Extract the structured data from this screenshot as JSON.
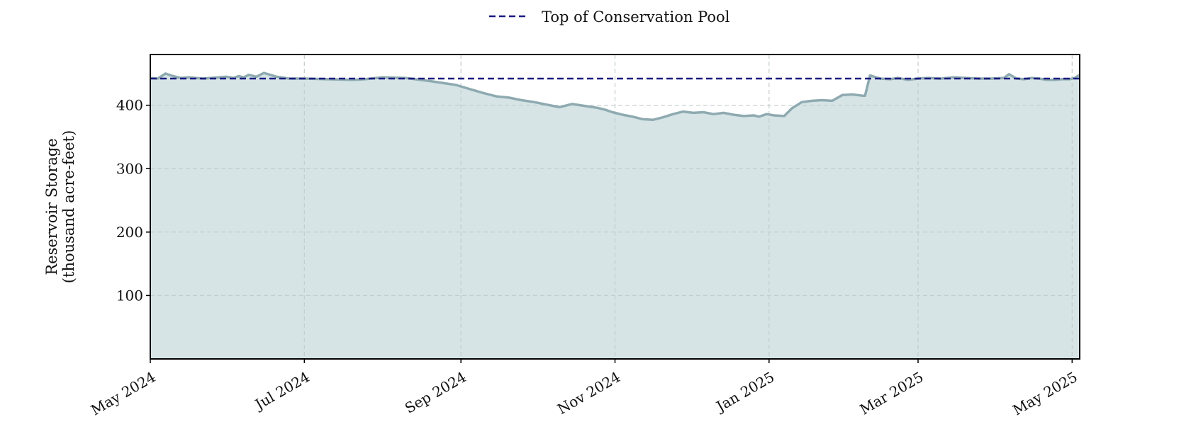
{
  "chart_data": {
    "type": "area",
    "xlabel": "",
    "ylabel": "Reservoir Storage\n(thousand acre-feet)",
    "ylim": [
      0,
      480
    ],
    "yticks": [
      100,
      200,
      300,
      400
    ],
    "xlim": [
      "2024-05-01",
      "2025-05-04"
    ],
    "xticks": [
      {
        "date": "2024-05-01",
        "label": "May 2024"
      },
      {
        "date": "2024-07-01",
        "label": "Jul 2024"
      },
      {
        "date": "2024-09-01",
        "label": "Sep 2024"
      },
      {
        "date": "2024-11-01",
        "label": "Nov 2024"
      },
      {
        "date": "2025-01-01",
        "label": "Jan 2025"
      },
      {
        "date": "2025-03-01",
        "label": "Mar 2025"
      },
      {
        "date": "2025-05-01",
        "label": "May 2025"
      }
    ],
    "grid": true,
    "legend_position": "top-center",
    "reference_line": {
      "name": "Top of Conservation Pool",
      "value": 442,
      "color": "#1a1a80",
      "style": "dashed"
    },
    "series": [
      {
        "color": "#8eaab0",
        "fill_color": "#d6e4e6",
        "x": [
          "2024-05-01",
          "2024-05-04",
          "2024-05-07",
          "2024-05-10",
          "2024-05-13",
          "2024-05-16",
          "2024-05-19",
          "2024-05-22",
          "2024-05-25",
          "2024-05-28",
          "2024-05-31",
          "2024-06-03",
          "2024-06-05",
          "2024-06-07",
          "2024-06-09",
          "2024-06-12",
          "2024-06-15",
          "2024-06-20",
          "2024-06-25",
          "2024-07-01",
          "2024-07-10",
          "2024-07-20",
          "2024-07-25",
          "2024-08-01",
          "2024-08-10",
          "2024-08-20",
          "2024-08-30",
          "2024-09-05",
          "2024-09-10",
          "2024-09-15",
          "2024-09-20",
          "2024-09-25",
          "2024-09-30",
          "2024-10-05",
          "2024-10-10",
          "2024-10-15",
          "2024-10-20",
          "2024-10-25",
          "2024-10-28",
          "2024-10-31",
          "2024-11-04",
          "2024-11-08",
          "2024-11-12",
          "2024-11-16",
          "2024-11-20",
          "2024-11-24",
          "2024-11-28",
          "2024-12-02",
          "2024-12-06",
          "2024-12-10",
          "2024-12-14",
          "2024-12-18",
          "2024-12-22",
          "2024-12-26",
          "2024-12-28",
          "2024-12-31",
          "2025-01-03",
          "2025-01-07",
          "2025-01-10",
          "2025-01-14",
          "2025-01-18",
          "2025-01-22",
          "2025-01-26",
          "2025-01-30",
          "2025-02-03",
          "2025-02-07",
          "2025-02-08",
          "2025-02-10",
          "2025-02-14",
          "2025-02-18",
          "2025-02-21",
          "2025-02-25",
          "2025-03-01",
          "2025-03-05",
          "2025-03-10",
          "2025-03-15",
          "2025-03-20",
          "2025-03-25",
          "2025-03-30",
          "2025-04-04",
          "2025-04-06",
          "2025-04-09",
          "2025-04-12",
          "2025-04-15",
          "2025-04-18",
          "2025-04-21",
          "2025-04-24",
          "2025-04-27",
          "2025-04-30",
          "2025-05-02",
          "2025-05-04"
        ],
        "y": [
          443,
          442,
          450,
          446,
          443,
          444,
          443,
          442,
          443,
          444,
          445,
          443,
          446,
          444,
          448,
          445,
          451,
          445,
          442,
          442,
          441,
          440,
          441,
          444,
          443,
          438,
          432,
          425,
          419,
          414,
          412,
          408,
          405,
          401,
          397,
          402,
          399,
          396,
          393,
          389,
          385,
          382,
          378,
          377,
          381,
          386,
          390,
          388,
          389,
          386,
          388,
          385,
          383,
          384,
          382,
          386,
          384,
          383,
          395,
          405,
          407,
          408,
          407,
          416,
          417,
          415,
          415,
          447,
          442,
          441,
          443,
          440,
          442,
          443,
          442,
          444,
          443,
          442,
          442,
          443,
          449,
          442,
          441,
          443,
          442,
          440,
          440,
          441,
          441,
          443,
          448
        ]
      }
    ]
  }
}
